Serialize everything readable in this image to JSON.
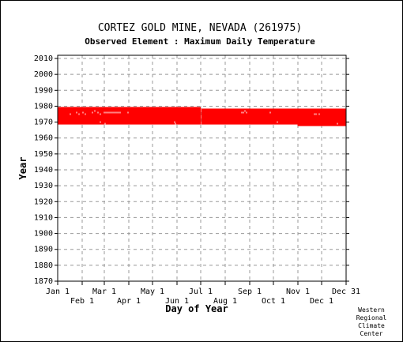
{
  "header": {
    "title": "CORTEZ GOLD MINE, NEVADA   (261975)",
    "subtitle": "Observed Element : Maximum Daily Temperature"
  },
  "credit": [
    "Western",
    "Regional",
    "Climate",
    "Center"
  ],
  "chart_data": {
    "type": "heatmap",
    "title": "CORTEZ GOLD MINE, NEVADA   (261975)",
    "subtitle": "Observed Element : Maximum Daily Temperature",
    "xlabel": "Day of Year",
    "ylabel": "Year",
    "x_range": [
      1,
      366
    ],
    "ylim": [
      1870,
      2012
    ],
    "y_ticks": [
      1870,
      1880,
      1890,
      1900,
      1910,
      1920,
      1930,
      1940,
      1950,
      1960,
      1970,
      1980,
      1990,
      2000,
      2010
    ],
    "x_ticks_top_row": [
      {
        "label": "Jan 1",
        "day": 1
      },
      {
        "label": "Mar 1",
        "day": 60
      },
      {
        "label": "May 1",
        "day": 121
      },
      {
        "label": "Jul 1",
        "day": 182
      },
      {
        "label": "Sep 1",
        "day": 244
      },
      {
        "label": "Nov 1",
        "day": 305
      },
      {
        "label": "Dec 31",
        "day": 366
      }
    ],
    "x_ticks_bottom_row": [
      {
        "label": "Feb 1",
        "day": 32
      },
      {
        "label": "Apr 1",
        "day": 91
      },
      {
        "label": "Jun 1",
        "day": 152
      },
      {
        "label": "Aug 1",
        "day": 213
      },
      {
        "label": "Oct 1",
        "day": 274
      },
      {
        "label": "Dec 1",
        "day": 335
      }
    ],
    "grid": true,
    "color": "#ff0000",
    "segments": [
      {
        "day_start": 1,
        "day_end": 182,
        "year_start": 1969,
        "year_end": 1979
      },
      {
        "day_start": 183,
        "day_end": 304,
        "year_start": 1969,
        "year_end": 1978
      },
      {
        "day_start": 305,
        "day_end": 366,
        "year_start": 1968,
        "year_end": 1978
      }
    ],
    "gaps": [
      {
        "day": 17,
        "year": 1975
      },
      {
        "day": 25,
        "year": 1976
      },
      {
        "day": 28,
        "year": 1975
      },
      {
        "day": 33,
        "year": 1976
      },
      {
        "day": 36,
        "year": 1975
      },
      {
        "day": 45,
        "year": 1976
      },
      {
        "day": 48,
        "year": 1977
      },
      {
        "day": 52,
        "year": 1976
      },
      {
        "day": 55,
        "year": 1975
      },
      {
        "day": 60,
        "year": 1976
      },
      {
        "day": 62,
        "year": 1976
      },
      {
        "day": 64,
        "year": 1976
      },
      {
        "day": 66,
        "year": 1976
      },
      {
        "day": 68,
        "year": 1976
      },
      {
        "day": 70,
        "year": 1976
      },
      {
        "day": 72,
        "year": 1976
      },
      {
        "day": 74,
        "year": 1976
      },
      {
        "day": 76,
        "year": 1976
      },
      {
        "day": 78,
        "year": 1976
      },
      {
        "day": 80,
        "year": 1976
      },
      {
        "day": 90,
        "year": 1976
      },
      {
        "day": 55,
        "year": 1970
      },
      {
        "day": 61,
        "year": 1969
      },
      {
        "day": 149,
        "year": 1970
      },
      {
        "day": 150,
        "year": 1969
      },
      {
        "day": 234,
        "year": 1976
      },
      {
        "day": 236,
        "year": 1976
      },
      {
        "day": 238,
        "year": 1977
      },
      {
        "day": 240,
        "year": 1976
      },
      {
        "day": 270,
        "year": 1976
      },
      {
        "day": 279,
        "year": 1970
      },
      {
        "day": 326,
        "year": 1975
      },
      {
        "day": 328,
        "year": 1975
      },
      {
        "day": 332,
        "year": 1975
      },
      {
        "day": 355,
        "year": 1969
      }
    ]
  }
}
